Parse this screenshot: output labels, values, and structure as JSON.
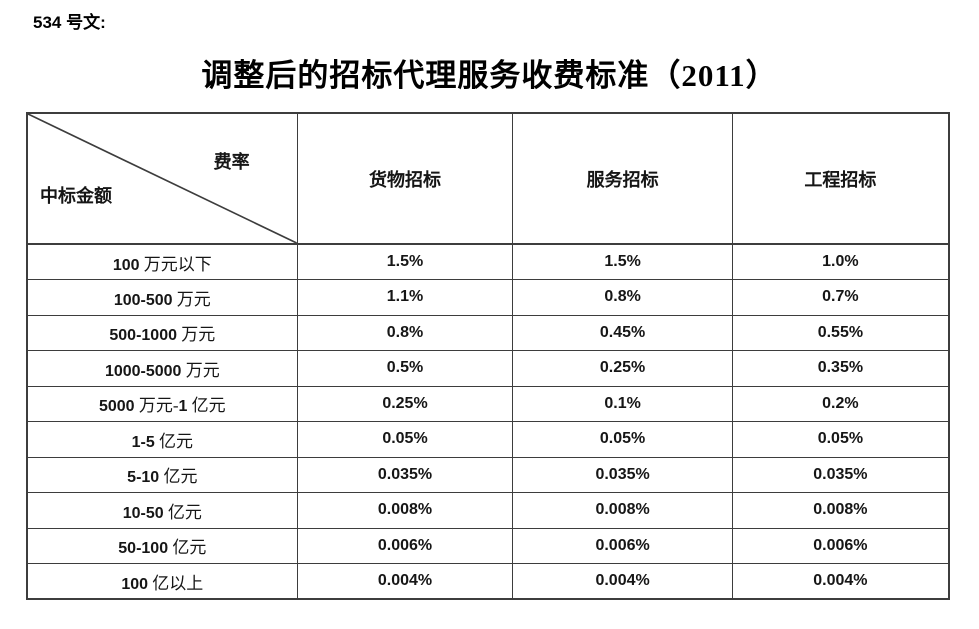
{
  "document": {
    "doc_label": "534 号文:",
    "title": "调整后的招标代理服务收费标准（2011）"
  },
  "table": {
    "corner": {
      "top_right": "费率",
      "bottom_left": "中标金额"
    },
    "columns": [
      "货物招标",
      "服务招标",
      "工程招标"
    ],
    "rows": [
      {
        "amount": "100 万元以下",
        "goods": "1.5%",
        "service": "1.5%",
        "engineering": "1.0%"
      },
      {
        "amount": "100-500 万元",
        "goods": "1.1%",
        "service": "0.8%",
        "engineering": "0.7%"
      },
      {
        "amount": "500-1000 万元",
        "goods": "0.8%",
        "service": "0.45%",
        "engineering": "0.55%"
      },
      {
        "amount": "1000-5000 万元",
        "goods": "0.5%",
        "service": "0.25%",
        "engineering": "0.35%"
      },
      {
        "amount": "5000 万元-1 亿元",
        "goods": "0.25%",
        "service": "0.1%",
        "engineering": "0.2%"
      },
      {
        "amount": "1-5 亿元",
        "goods": "0.05%",
        "service": "0.05%",
        "engineering": "0.05%"
      },
      {
        "amount": "5-10 亿元",
        "goods": "0.035%",
        "service": "0.035%",
        "engineering": "0.035%"
      },
      {
        "amount": "10-50 亿元",
        "goods": "0.008%",
        "service": "0.008%",
        "engineering": "0.008%"
      },
      {
        "amount": "50-100 亿元",
        "goods": "0.006%",
        "service": "0.006%",
        "engineering": "0.006%"
      },
      {
        "amount": "100 亿以上",
        "goods": "0.004%",
        "service": "0.004%",
        "engineering": "0.004%"
      }
    ]
  }
}
